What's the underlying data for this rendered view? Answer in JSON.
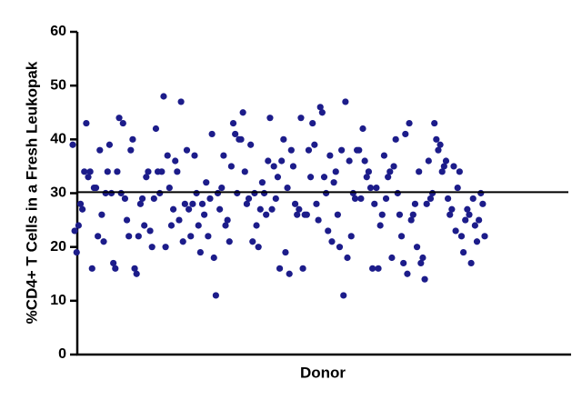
{
  "chart_data": {
    "type": "scatter",
    "y_label": "%CD4+ T Cells in a Fresh Leukopak",
    "x_label": "Donor",
    "color": "#1c1c8a",
    "ylim": [
      0,
      60
    ],
    "yticks": [
      0,
      10,
      20,
      30,
      40,
      50,
      60
    ],
    "reference_line": 30.2,
    "values": [
      39,
      23,
      19,
      24,
      28,
      27,
      34,
      43,
      33,
      34,
      16,
      31,
      31,
      22,
      38,
      26,
      21,
      30,
      34,
      39,
      30,
      17,
      16,
      34,
      44,
      30,
      43,
      29,
      25,
      22,
      38,
      40,
      16,
      15,
      22,
      28,
      29,
      24,
      33,
      34,
      23,
      20,
      29,
      42,
      34,
      30,
      34,
      48,
      20,
      37,
      31,
      24,
      27,
      36,
      34,
      25,
      47,
      21,
      28,
      38,
      27,
      22,
      28,
      37,
      30,
      24,
      19,
      28,
      26,
      32,
      22,
      29,
      41,
      18,
      11,
      30,
      27,
      31,
      37,
      24,
      25,
      21,
      35,
      43,
      41,
      30,
      40,
      40,
      45,
      34,
      28,
      29,
      39,
      21,
      30,
      24,
      20,
      27,
      32,
      30,
      26,
      36,
      44,
      27,
      35,
      29,
      33,
      16,
      36,
      40,
      19,
      31,
      15,
      38,
      35,
      28,
      26,
      27,
      44,
      16,
      26,
      26,
      38,
      33,
      43,
      39,
      28,
      25,
      46,
      45,
      33,
      30,
      23,
      37,
      21,
      32,
      34,
      26,
      20,
      38,
      11,
      47,
      18,
      36,
      22,
      30,
      29,
      38,
      38,
      29,
      42,
      36,
      33,
      34,
      31,
      16,
      28,
      31,
      16,
      24,
      26,
      37,
      29,
      33,
      34,
      18,
      35,
      40,
      30,
      26,
      22,
      17,
      41,
      15,
      43,
      25,
      26,
      28,
      20,
      34,
      17,
      18,
      14,
      28,
      36,
      29,
      30,
      43,
      40,
      38,
      39,
      34,
      35,
      36,
      29,
      26,
      27,
      35,
      23,
      31,
      34,
      22,
      19,
      25,
      27,
      26,
      17,
      29,
      24,
      21,
      25,
      30,
      28,
      22
    ]
  }
}
